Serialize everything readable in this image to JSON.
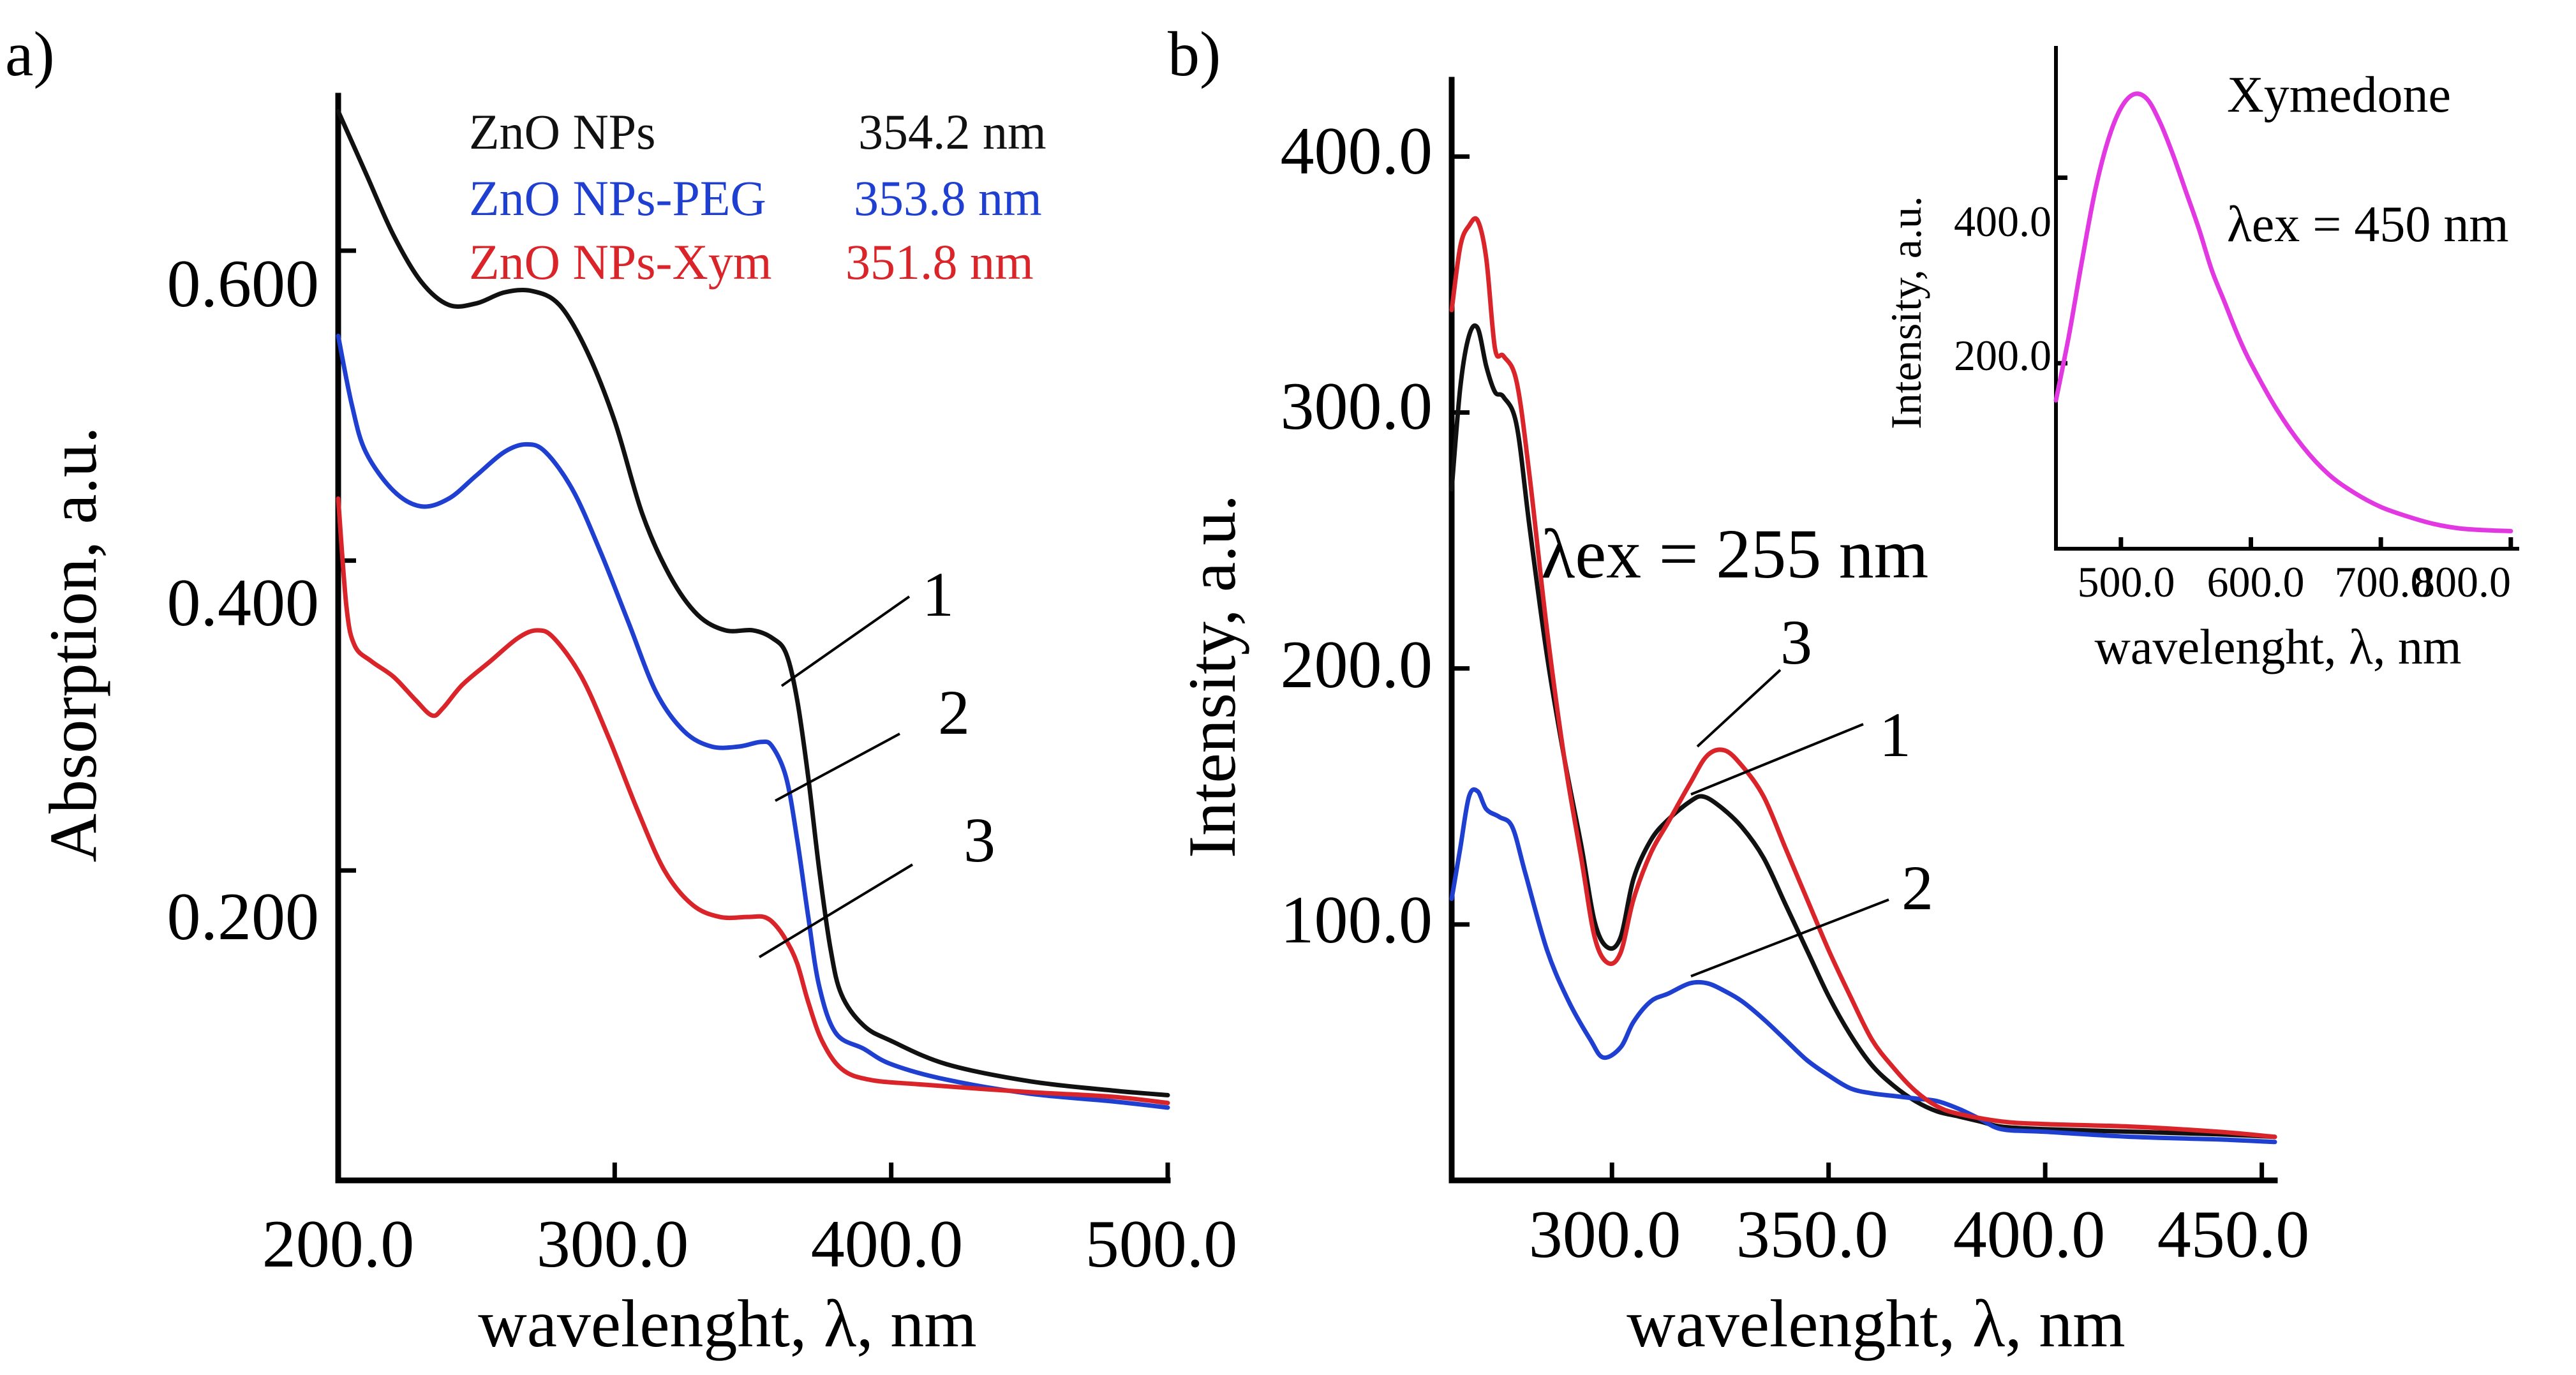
{
  "chart_data": [
    {
      "panel_label": "a)",
      "type": "line",
      "title": "",
      "xlabel": "wavelenght, λ, nm",
      "ylabel": "Absorption, a.u.",
      "xlim": [
        200,
        500
      ],
      "ylim": [
        0,
        0.7
      ],
      "x_ticks": [
        200,
        300,
        400,
        500
      ],
      "x_tick_labels": [
        "200.0",
        "300.0",
        "400.0",
        "500.0"
      ],
      "y_ticks": [
        0.2,
        0.4,
        0.6
      ],
      "y_tick_labels": [
        "0.200",
        "0.400",
        "0.600"
      ],
      "grid": false,
      "legend": [
        {
          "name": "ZnO NPs",
          "value": "354.2 nm",
          "color": "#111111"
        },
        {
          "name": "ZnO NPs-PEG",
          "value": "353.8 nm",
          "color": "#1f3fd0"
        },
        {
          "name": "ZnO NPs-Xym",
          "value": "351.8 nm",
          "color": "#d9242a"
        }
      ],
      "series": [
        {
          "name": "1",
          "color": "#111111",
          "points": [
            [
              200,
              0.69
            ],
            [
              210,
              0.65
            ],
            [
              220,
              0.61
            ],
            [
              230,
              0.58
            ],
            [
              240,
              0.565
            ],
            [
              250,
              0.566
            ],
            [
              260,
              0.573
            ],
            [
              270,
              0.574
            ],
            [
              280,
              0.565
            ],
            [
              290,
              0.535
            ],
            [
              300,
              0.49
            ],
            [
              310,
              0.43
            ],
            [
              320,
              0.39
            ],
            [
              330,
              0.365
            ],
            [
              340,
              0.355
            ],
            [
              350,
              0.355
            ],
            [
              357,
              0.35
            ],
            [
              362,
              0.34
            ],
            [
              366,
              0.31
            ],
            [
              370,
              0.26
            ],
            [
              374,
              0.2
            ],
            [
              378,
              0.15
            ],
            [
              382,
              0.12
            ],
            [
              390,
              0.1
            ],
            [
              400,
              0.09
            ],
            [
              420,
              0.075
            ],
            [
              450,
              0.064
            ],
            [
              480,
              0.058
            ],
            [
              500,
              0.055
            ]
          ]
        },
        {
          "name": "2",
          "color": "#1f3fd0",
          "points": [
            [
              200,
              0.545
            ],
            [
              205,
              0.5
            ],
            [
              210,
              0.47
            ],
            [
              220,
              0.445
            ],
            [
              230,
              0.435
            ],
            [
              240,
              0.44
            ],
            [
              250,
              0.455
            ],
            [
              260,
              0.47
            ],
            [
              268,
              0.475
            ],
            [
              275,
              0.47
            ],
            [
              285,
              0.445
            ],
            [
              295,
              0.405
            ],
            [
              305,
              0.36
            ],
            [
              315,
              0.315
            ],
            [
              325,
              0.29
            ],
            [
              335,
              0.28
            ],
            [
              345,
              0.28
            ],
            [
              353,
              0.283
            ],
            [
              357,
              0.28
            ],
            [
              362,
              0.26
            ],
            [
              366,
              0.22
            ],
            [
              370,
              0.17
            ],
            [
              374,
              0.125
            ],
            [
              380,
              0.095
            ],
            [
              390,
              0.085
            ],
            [
              400,
              0.075
            ],
            [
              420,
              0.065
            ],
            [
              450,
              0.056
            ],
            [
              480,
              0.051
            ],
            [
              500,
              0.047
            ]
          ]
        },
        {
          "name": "3",
          "color": "#d9242a",
          "points": [
            [
              200,
              0.44
            ],
            [
              203,
              0.37
            ],
            [
              206,
              0.345
            ],
            [
              212,
              0.335
            ],
            [
              220,
              0.325
            ],
            [
              228,
              0.31
            ],
            [
              234,
              0.3
            ],
            [
              238,
              0.305
            ],
            [
              245,
              0.32
            ],
            [
              255,
              0.335
            ],
            [
              265,
              0.35
            ],
            [
              272,
              0.355
            ],
            [
              278,
              0.35
            ],
            [
              288,
              0.325
            ],
            [
              298,
              0.285
            ],
            [
              308,
              0.24
            ],
            [
              318,
              0.2
            ],
            [
              328,
              0.178
            ],
            [
              338,
              0.17
            ],
            [
              348,
              0.17
            ],
            [
              354,
              0.17
            ],
            [
              358,
              0.165
            ],
            [
              362,
              0.155
            ],
            [
              366,
              0.14
            ],
            [
              370,
              0.115
            ],
            [
              375,
              0.09
            ],
            [
              382,
              0.072
            ],
            [
              392,
              0.065
            ],
            [
              410,
              0.062
            ],
            [
              450,
              0.057
            ],
            [
              480,
              0.054
            ],
            [
              500,
              0.05
            ]
          ]
        }
      ],
      "annotations": [
        "1",
        "2",
        "3"
      ]
    },
    {
      "panel_label": "b)",
      "type": "line",
      "title": "",
      "xlabel": "wavelenght, λ, nm",
      "ylabel": "Intensity, a.u.",
      "xlim": [
        263,
        453
      ],
      "ylim": [
        0,
        430
      ],
      "x_ticks": [
        300,
        350,
        400,
        450
      ],
      "x_tick_labels": [
        "300.0",
        "350.0",
        "400.0",
        "450.0"
      ],
      "y_ticks": [
        100,
        200,
        300,
        400
      ],
      "y_tick_labels": [
        "100.0",
        "200.0",
        "300.0",
        "400.0"
      ],
      "grid": false,
      "annotation_text": "λex = 255 nm",
      "series": [
        {
          "name": "1",
          "color": "#111111",
          "points": [
            [
              263,
              270
            ],
            [
              265,
              310
            ],
            [
              267,
              330
            ],
            [
              269,
              333
            ],
            [
              271,
              318
            ],
            [
              273,
              308
            ],
            [
              275,
              306
            ],
            [
              278,
              295
            ],
            [
              281,
              255
            ],
            [
              285,
              205
            ],
            [
              289,
              165
            ],
            [
              293,
              130
            ],
            [
              296,
              101
            ],
            [
              299,
              91
            ],
            [
              302,
              95
            ],
            [
              305,
              118
            ],
            [
              309,
              133
            ],
            [
              313,
              141
            ],
            [
              318,
              148
            ],
            [
              321,
              150
            ],
            [
              325,
              146
            ],
            [
              330,
              138
            ],
            [
              335,
              126
            ],
            [
              340,
              108
            ],
            [
              345,
              90
            ],
            [
              350,
              72
            ],
            [
              355,
              57
            ],
            [
              360,
              45
            ],
            [
              365,
              37
            ],
            [
              370,
              31
            ],
            [
              375,
              27
            ],
            [
              380,
              25
            ],
            [
              385,
              23
            ],
            [
              390,
              21
            ],
            [
              400,
              20
            ],
            [
              420,
              19
            ],
            [
              440,
              18
            ],
            [
              453,
              17
            ]
          ]
        },
        {
          "name": "2",
          "color": "#1f3fd0",
          "points": [
            [
              263,
              110
            ],
            [
              265,
              130
            ],
            [
              267,
              150
            ],
            [
              269,
              152
            ],
            [
              271,
              145
            ],
            [
              274,
              142
            ],
            [
              277,
              138
            ],
            [
              280,
              120
            ],
            [
              285,
              90
            ],
            [
              290,
              70
            ],
            [
              295,
              55
            ],
            [
              298,
              48
            ],
            [
              302,
              52
            ],
            [
              305,
              62
            ],
            [
              309,
              70
            ],
            [
              313,
              73
            ],
            [
              318,
              77
            ],
            [
              322,
              77
            ],
            [
              326,
              74
            ],
            [
              330,
              70
            ],
            [
              335,
              63
            ],
            [
              340,
              55
            ],
            [
              345,
              47
            ],
            [
              350,
              41
            ],
            [
              355,
              36
            ],
            [
              360,
              34
            ],
            [
              365,
              33
            ],
            [
              370,
              32
            ],
            [
              375,
              31
            ],
            [
              380,
              28
            ],
            [
              385,
              24
            ],
            [
              390,
              20
            ],
            [
              400,
              19
            ],
            [
              420,
              17
            ],
            [
              440,
              16
            ],
            [
              453,
              15
            ]
          ]
        },
        {
          "name": "3",
          "color": "#d9242a",
          "points": [
            [
              263,
              340
            ],
            [
              265,
              365
            ],
            [
              267,
              373
            ],
            [
              269,
              375
            ],
            [
              271,
              360
            ],
            [
              273,
              325
            ],
            [
              275,
              322
            ],
            [
              278,
              312
            ],
            [
              281,
              275
            ],
            [
              285,
              215
            ],
            [
              289,
              165
            ],
            [
              293,
              125
            ],
            [
              296,
              95
            ],
            [
              299,
              85
            ],
            [
              302,
              89
            ],
            [
              305,
              110
            ],
            [
              309,
              128
            ],
            [
              313,
              140
            ],
            [
              318,
              155
            ],
            [
              322,
              166
            ],
            [
              326,
              168
            ],
            [
              330,
              162
            ],
            [
              335,
              150
            ],
            [
              340,
              130
            ],
            [
              345,
              110
            ],
            [
              350,
              90
            ],
            [
              355,
              72
            ],
            [
              360,
              55
            ],
            [
              365,
              44
            ],
            [
              370,
              35
            ],
            [
              375,
              29
            ],
            [
              380,
              26
            ],
            [
              390,
              23
            ],
            [
              400,
              22
            ],
            [
              420,
              21
            ],
            [
              440,
              19
            ],
            [
              453,
              17
            ]
          ]
        }
      ],
      "annotations": [
        "3",
        "1",
        "2"
      ]
    },
    {
      "panel_label": "inset",
      "type": "line",
      "title": "Xymedone",
      "xlabel": "wavelenght, λ, nm",
      "ylabel": "Intensity, a.u.",
      "xlim": [
        450,
        805
      ],
      "ylim": [
        0,
        540
      ],
      "x_ticks": [
        500,
        600,
        700,
        800
      ],
      "x_tick_labels": [
        "500.0",
        "600.0",
        "700.0",
        "800.0"
      ],
      "y_ticks": [
        200,
        400
      ],
      "y_tick_labels": [
        "200.0",
        "400.0"
      ],
      "grid": false,
      "annotation_text": "λex = 450 nm",
      "series": [
        {
          "name": "Xymedone",
          "color": "#e238e2",
          "points": [
            [
              450,
              160
            ],
            [
              460,
              230
            ],
            [
              470,
              310
            ],
            [
              480,
              385
            ],
            [
              490,
              440
            ],
            [
              500,
              475
            ],
            [
              510,
              490
            ],
            [
              520,
              485
            ],
            [
              530,
              460
            ],
            [
              540,
              425
            ],
            [
              550,
              385
            ],
            [
              560,
              345
            ],
            [
              570,
              300
            ],
            [
              580,
              265
            ],
            [
              590,
              230
            ],
            [
              600,
              200
            ],
            [
              620,
              150
            ],
            [
              640,
              110
            ],
            [
              660,
              80
            ],
            [
              680,
              60
            ],
            [
              700,
              45
            ],
            [
              720,
              35
            ],
            [
              740,
              27
            ],
            [
              760,
              22
            ],
            [
              780,
              20
            ],
            [
              800,
              19
            ]
          ]
        }
      ]
    }
  ]
}
